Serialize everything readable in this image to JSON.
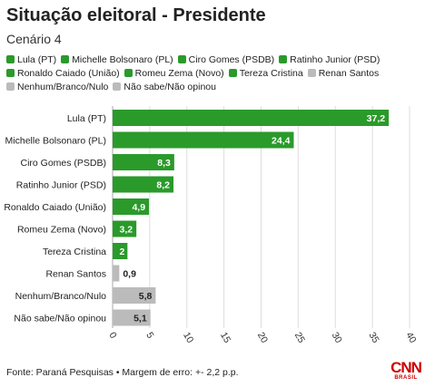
{
  "header": {
    "title": "Situação eleitoral - Presidente",
    "subtitle": "Cenário 4"
  },
  "colors": {
    "green": "#2a9a2a",
    "gray": "#bbbbbb"
  },
  "legend": [
    {
      "label": "Lula (PT)",
      "color": "green"
    },
    {
      "label": "Michelle Bolsonaro (PL)",
      "color": "green"
    },
    {
      "label": "Ciro Gomes (PSDB)",
      "color": "green"
    },
    {
      "label": "Ratinho Junior (PSD)",
      "color": "green"
    },
    {
      "label": "Ronaldo Caiado (União)",
      "color": "green"
    },
    {
      "label": "Romeu Zema (Novo)",
      "color": "green"
    },
    {
      "label": "Tereza Cristina",
      "color": "green"
    },
    {
      "label": "Renan Santos",
      "color": "gray"
    },
    {
      "label": "Nenhum/Branco/Nulo",
      "color": "gray"
    },
    {
      "label": "Não sabe/Não opinou",
      "color": "gray"
    }
  ],
  "chart_data": {
    "type": "bar",
    "orientation": "horizontal",
    "categories": [
      "Lula (PT)",
      "Michelle Bolsonaro (PL)",
      "Ciro Gomes (PSDB)",
      "Ratinho Junior (PSD)",
      "Ronaldo Caiado (União)",
      "Romeu Zema (Novo)",
      "Tereza Cristina",
      "Renan Santos",
      "Nenhum/Branco/Nulo",
      "Não sabe/Não opinou"
    ],
    "values": [
      37.2,
      24.4,
      8.3,
      8.2,
      4.9,
      3.2,
      2,
      0.9,
      5.8,
      5.1
    ],
    "value_labels": [
      "37,2",
      "24,4",
      "8,3",
      "8,2",
      "4,9",
      "3,2",
      "2",
      "0,9",
      "5,8",
      "5,1"
    ],
    "bar_colors": [
      "green",
      "green",
      "green",
      "green",
      "green",
      "green",
      "green",
      "gray",
      "gray",
      "gray"
    ],
    "xlim": [
      0,
      40
    ],
    "xticks": [
      0,
      5,
      10,
      15,
      20,
      25,
      30,
      35,
      40
    ],
    "grid": true
  },
  "footer": {
    "source": "Fonte: Paraná Pesquisas • Margem de erro: +- 2,2 p.p."
  },
  "logo": {
    "main": "CNN",
    "sub": "BRASIL"
  }
}
